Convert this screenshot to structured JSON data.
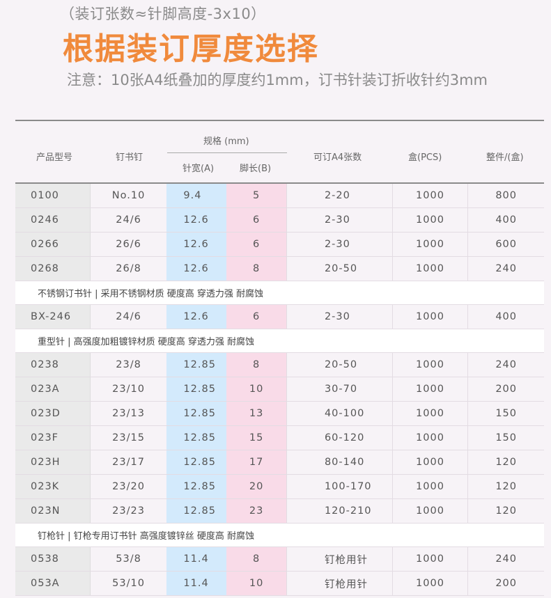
{
  "subtitle": "（装订张数≈针脚高度-3x10）",
  "title": "根据装订厚度选择",
  "note": "注意：10张A4纸叠加的厚度约1mm，订书针装订折收针约3mm",
  "header": {
    "model": "产品型号",
    "staple": "钉书钉",
    "spec": "规格 (mm)",
    "width": "针宽(A)",
    "leg": "脚长(B)",
    "sheets": "可订A4张数",
    "box": "盒(PCS)",
    "carton": "整件/(盒)"
  },
  "groups": [
    {
      "section": "",
      "rows": [
        [
          "0100",
          "No.10",
          "9.4",
          "5",
          "2-20",
          "1000",
          "800"
        ],
        [
          "0246",
          "24/6",
          "12.6",
          "6",
          "2-30",
          "1000",
          "400"
        ],
        [
          "0266",
          "26/6",
          "12.6",
          "6",
          "2-30",
          "1000",
          "600"
        ],
        [
          "0268",
          "26/8",
          "12.6",
          "8",
          "20-50",
          "1000",
          "240"
        ]
      ]
    },
    {
      "section": "不锈钢订书针 | 采用不锈钢材质 硬度高 穿透力强  耐腐蚀",
      "rows": [
        [
          "BX-246",
          "24/6",
          "12.6",
          "6",
          "2-30",
          "1000",
          "400"
        ]
      ]
    },
    {
      "section": "重型针 | 高强度加粗镀锌材质 硬度高 穿透力强  耐腐蚀",
      "rows": [
        [
          "0238",
          "23/8",
          "12.85",
          "8",
          "20-50",
          "1000",
          "240"
        ],
        [
          "023A",
          "23/10",
          "12.85",
          "10",
          "30-70",
          "1000",
          "200"
        ],
        [
          "023D",
          "23/13",
          "12.85",
          "13",
          "40-100",
          "1000",
          "150"
        ],
        [
          "023F",
          "23/15",
          "12.85",
          "15",
          "60-120",
          "1000",
          "150"
        ],
        [
          "023H",
          "23/17",
          "12.85",
          "17",
          "80-140",
          "1000",
          "120"
        ],
        [
          "023K",
          "23/20",
          "12.85",
          "20",
          "100-170",
          "1000",
          "120"
        ],
        [
          "023N",
          "23/23",
          "12.85",
          "23",
          "120-210",
          "1000",
          "120"
        ]
      ]
    },
    {
      "section": "钉枪针 | 钉枪专用订书针 高强度镀锌丝 硬度高 耐腐蚀",
      "rows": [
        [
          "0538",
          "53/8",
          "11.4",
          "8",
          "钉枪用针",
          "1000",
          "240"
        ],
        [
          "053A",
          "53/10",
          "11.4",
          "10",
          "钉枪用针",
          "1000",
          "200"
        ]
      ]
    }
  ]
}
